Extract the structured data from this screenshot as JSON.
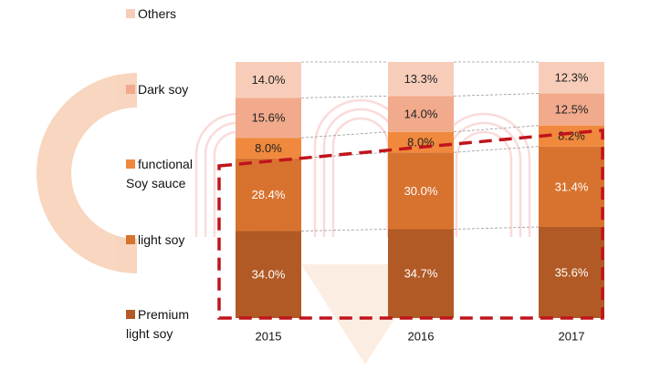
{
  "chart_data": {
    "type": "stacked_bar",
    "categories": [
      "2015",
      "2016",
      "2017"
    ],
    "series": [
      {
        "name": "Premium\nlight soy",
        "color": "#b15a25",
        "label_color": "#ffffff",
        "values": [
          34.0,
          34.7,
          35.6
        ],
        "value_labels": [
          "34.0%",
          "34.7%",
          "35.6%"
        ]
      },
      {
        "name": "light soy",
        "color": "#d8732f",
        "label_color": "#ffffff",
        "values": [
          28.4,
          30.0,
          31.4
        ],
        "value_labels": [
          "28.4%",
          "30.0%",
          "31.4%"
        ]
      },
      {
        "name": "functional\nSoy sauce",
        "color": "#f0893d",
        "label_color": "#222222",
        "values": [
          8.0,
          8.0,
          8.2
        ],
        "value_labels": [
          "8.0%",
          "8.0%",
          "8.2%"
        ]
      },
      {
        "name": "Dark soy",
        "color": "#f1aa8b",
        "label_color": "#222222",
        "values": [
          15.6,
          14.0,
          12.5
        ],
        "value_labels": [
          "15.6%",
          "14.0%",
          "12.5%"
        ]
      },
      {
        "name": "Others",
        "color": "#f7cdb9",
        "label_color": "#222222",
        "values": [
          14.0,
          13.3,
          12.3
        ],
        "value_labels": [
          "14.0%",
          "13.3%",
          "12.3%"
        ]
      }
    ]
  }
}
